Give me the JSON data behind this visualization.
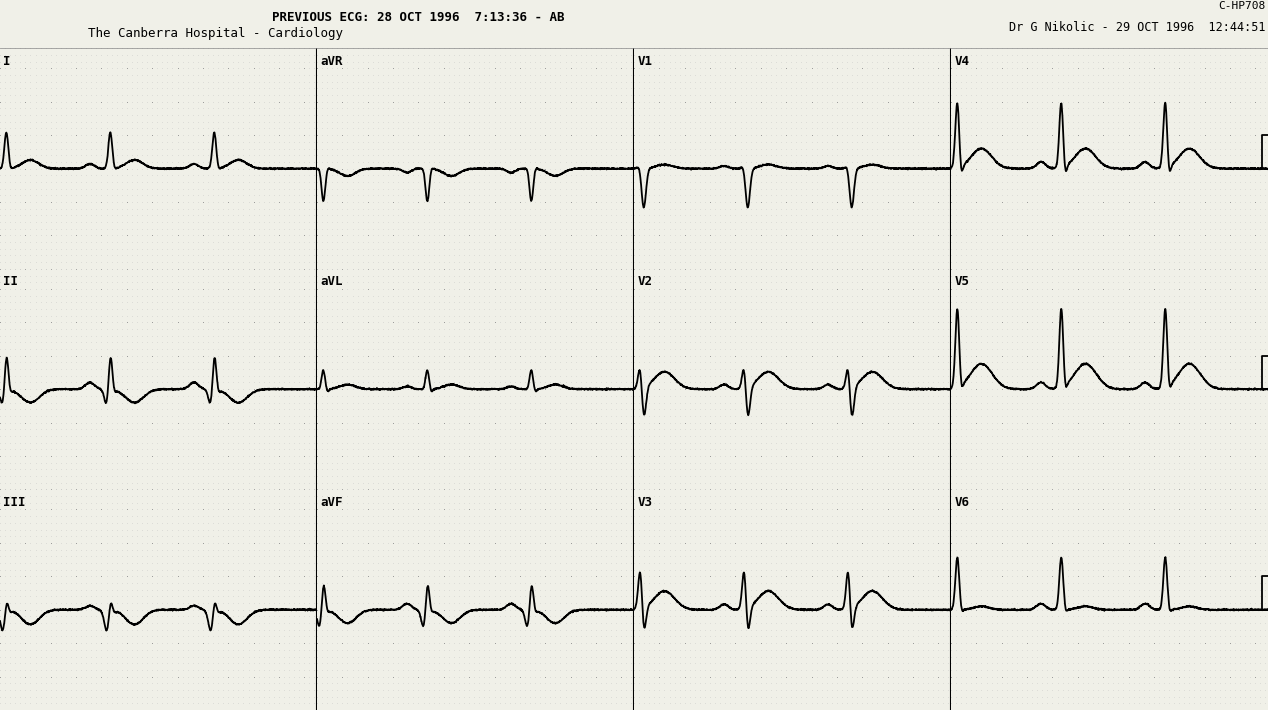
{
  "bg_color": "#f0f0e8",
  "dot_color": "#b8b8b8",
  "major_dot_color": "#909090",
  "ecg_color": "#000000",
  "text_color": "#000000",
  "title_line1": "PREVIOUS ECG: 28 OCT 1996  7:13:36 - AB",
  "title_line2": "The Canberra Hospital - Cardiology",
  "title_right1": "C-HP708",
  "title_right2": "Dr G Nikolic - 29 OCT 1996  12:44:51",
  "leads": [
    [
      "I",
      "aVR",
      "V1",
      "V4"
    ],
    [
      "II",
      "aVL",
      "V2",
      "V5"
    ],
    [
      "III",
      "aVF",
      "V3",
      "V6"
    ]
  ],
  "fig_width": 12.68,
  "fig_height": 7.1,
  "dpi": 100,
  "ecg_lw": 1.3,
  "fs": 500,
  "duration": 2.5,
  "minor_grid_mm": 1,
  "major_grid_mm": 5,
  "mm_per_sec": 25,
  "mm_per_mv": 10
}
